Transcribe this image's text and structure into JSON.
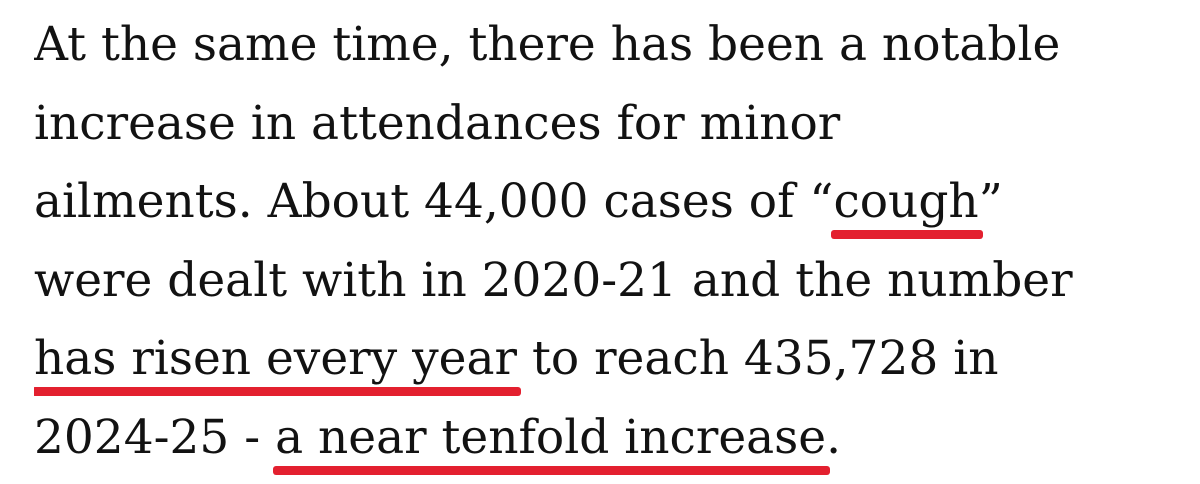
{
  "paragraph": {
    "lines": [
      {
        "segments": [
          {
            "text": "At the same time, there has been a notable"
          }
        ]
      },
      {
        "segments": [
          {
            "text": "increase in attendances for minor"
          }
        ]
      },
      {
        "segments": [
          {
            "text": "ailments. About 44,000 cases of “"
          },
          {
            "text": "cough",
            "underline": true
          },
          {
            "text": "”"
          }
        ]
      },
      {
        "segments": [
          {
            "text": "were dealt with in 2020-21 and the number"
          }
        ]
      },
      {
        "segments": [
          {
            "text": "has risen every year",
            "underline": true
          },
          {
            "text": " to reach 435,728 in"
          }
        ]
      },
      {
        "segments": [
          {
            "text": "2024-25 - "
          },
          {
            "text": "a near tenfold increase",
            "underline": true
          },
          {
            "text": "."
          }
        ]
      }
    ],
    "underline_color": "#e3202f"
  }
}
